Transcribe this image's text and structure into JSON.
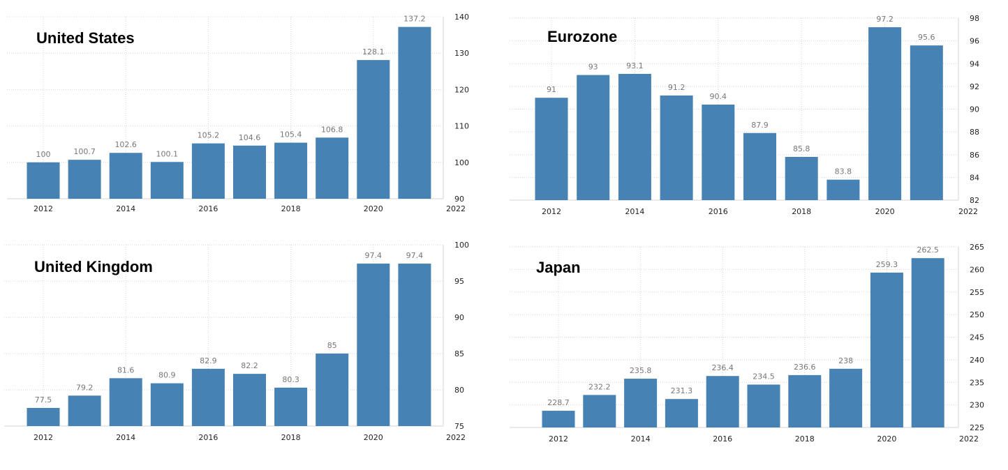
{
  "chart_data": [
    {
      "type": "bar",
      "title": "United States",
      "years": [
        "2012",
        "2013",
        "2014",
        "2015",
        "2016",
        "2017",
        "2018",
        "2019",
        "2020",
        "2021"
      ],
      "values": [
        100,
        100.7,
        102.6,
        100.1,
        105.2,
        104.6,
        105.4,
        106.8,
        128.1,
        137.2
      ],
      "value_labels": [
        "100",
        "100.7",
        "102.6",
        "100.1",
        "105.2",
        "104.6",
        "105.4",
        "106.8",
        "128.1",
        "137.2"
      ],
      "x_ticks": [
        "2012",
        "2014",
        "2016",
        "2018",
        "2020",
        "2022"
      ],
      "y_ticks": [
        "90",
        "100",
        "110",
        "120",
        "130",
        "140"
      ],
      "ylim": [
        90,
        140
      ],
      "xlim": [
        2011.5,
        2022
      ],
      "grid": true,
      "bar_color": "#4682b4"
    },
    {
      "type": "bar",
      "title": "Eurozone",
      "years": [
        "2012",
        "2013",
        "2014",
        "2015",
        "2016",
        "2017",
        "2018",
        "2019",
        "2020",
        "2021"
      ],
      "values": [
        91,
        93,
        93.1,
        91.2,
        90.4,
        87.9,
        85.8,
        83.8,
        97.2,
        95.6
      ],
      "value_labels": [
        "91",
        "93",
        "93.1",
        "91.2",
        "90.4",
        "87.9",
        "85.8",
        "83.8",
        "97.2",
        "95.6"
      ],
      "x_ticks": [
        "2012",
        "2014",
        "2016",
        "2018",
        "2020",
        "2022"
      ],
      "y_ticks": [
        "82",
        "84",
        "86",
        "88",
        "90",
        "92",
        "94",
        "96",
        "98"
      ],
      "ylim": [
        82,
        98
      ],
      "xlim": [
        2011.5,
        2022
      ],
      "grid": true,
      "bar_color": "#4682b4"
    },
    {
      "type": "bar",
      "title": "United Kingdom",
      "years": [
        "2012",
        "2013",
        "2014",
        "2015",
        "2016",
        "2017",
        "2018",
        "2019",
        "2020",
        "2021"
      ],
      "values": [
        77.5,
        79.2,
        81.6,
        80.9,
        82.9,
        82.2,
        80.3,
        85,
        97.4,
        97.4
      ],
      "value_labels": [
        "77.5",
        "79.2",
        "81.6",
        "80.9",
        "82.9",
        "82.2",
        "80.3",
        "85",
        "97.4",
        "97.4"
      ],
      "x_ticks": [
        "2012",
        "2014",
        "2016",
        "2018",
        "2020",
        "2022"
      ],
      "y_ticks": [
        "75",
        "80",
        "85",
        "90",
        "95",
        "100"
      ],
      "ylim": [
        75,
        100
      ],
      "xlim": [
        2011.5,
        2022
      ],
      "grid": true,
      "bar_color": "#4682b4"
    },
    {
      "type": "bar",
      "title": "Japan",
      "years": [
        "2012",
        "2013",
        "2014",
        "2015",
        "2016",
        "2017",
        "2018",
        "2019",
        "2020",
        "2021"
      ],
      "values": [
        228.7,
        232.2,
        235.8,
        231.3,
        236.4,
        234.5,
        236.6,
        238,
        259.3,
        262.5
      ],
      "value_labels": [
        "228.7",
        "232.2",
        "235.8",
        "231.3",
        "236.4",
        "234.5",
        "236.6",
        "238",
        "259.3",
        "262.5"
      ],
      "x_ticks": [
        "2012",
        "2014",
        "2016",
        "2018",
        "2020",
        "2022"
      ],
      "y_ticks": [
        "225",
        "230",
        "235",
        "240",
        "245",
        "250",
        "255",
        "260",
        "265"
      ],
      "ylim": [
        225,
        265
      ],
      "xlim": [
        2011.5,
        2022
      ],
      "grid": true,
      "bar_color": "#4682b4"
    }
  ]
}
